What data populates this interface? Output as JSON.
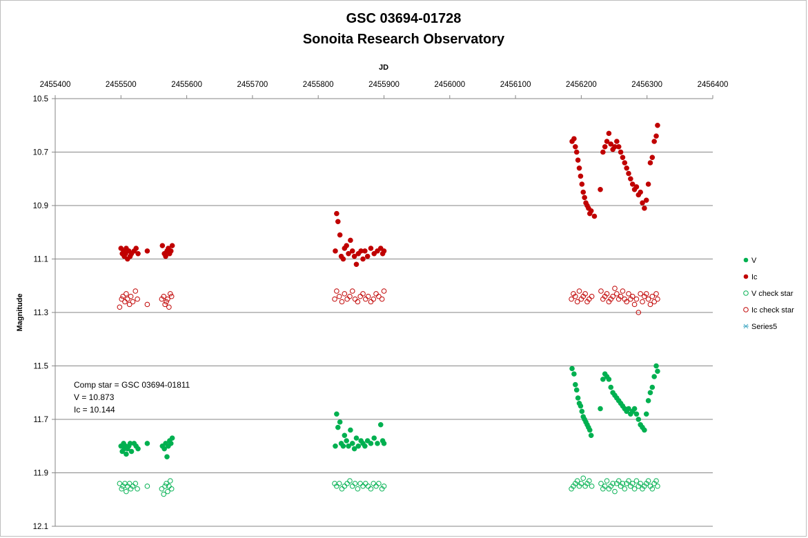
{
  "chart_data": {
    "type": "scatter",
    "title": "GSC 03694-01728",
    "subtitle": "Sonoita Research Observatory",
    "xlabel": "JD",
    "ylabel": "Magnitude",
    "xlim": [
      2455400,
      2456400
    ],
    "ylim": [
      10.5,
      12.1
    ],
    "y_reversed": true,
    "x_axis_position": "top",
    "x_ticks": [
      "2455400",
      "2455500",
      "2455600",
      "2455700",
      "2455800",
      "2455900",
      "2456000",
      "2456100",
      "2456200",
      "2456300",
      "2456400"
    ],
    "y_ticks": [
      "10.5",
      "10.7",
      "10.9",
      "11.1",
      "11.3",
      "11.5",
      "11.7",
      "11.9",
      "12.1"
    ],
    "grid": "horizontal",
    "legend_position": "right",
    "annotation": [
      "Comp star = GSC 03694-01811",
      "V =  10.873",
      "Ic = 10.144"
    ],
    "series": [
      {
        "name": "V",
        "color": "#00b050",
        "marker": "filled-circle",
        "x": [
          2455500,
          2455502,
          2455504,
          2455505,
          2455507,
          2455508,
          2455510,
          2455512,
          2455514,
          2455516,
          2455520,
          2455523,
          2455526,
          2455540,
          2455563,
          2455566,
          2455568,
          2455570,
          2455572,
          2455574,
          2455576,
          2455578,
          2455826,
          2455828,
          2455830,
          2455833,
          2455835,
          2455838,
          2455840,
          2455843,
          2455846,
          2455849,
          2455852,
          2455855,
          2455858,
          2455861,
          2455865,
          2455868,
          2455871,
          2455875,
          2455880,
          2455885,
          2455890,
          2455895,
          2455898,
          2455900,
          2456186,
          2456189,
          2456191,
          2456193,
          2456195,
          2456197,
          2456199,
          2456201,
          2456203,
          2456205,
          2456207,
          2456209,
          2456211,
          2456213,
          2456215,
          2456229,
          2456233,
          2456236,
          2456239,
          2456242,
          2456245,
          2456248,
          2456251,
          2456254,
          2456257,
          2456260,
          2456263,
          2456266,
          2456269,
          2456272,
          2456275,
          2456278,
          2456281,
          2456284,
          2456287,
          2456290,
          2456293,
          2456296,
          2456299,
          2456302,
          2456305,
          2456308,
          2456311,
          2456314,
          2456316
        ],
        "y": [
          11.8,
          11.82,
          11.79,
          11.81,
          11.8,
          11.83,
          11.81,
          11.8,
          11.79,
          11.82,
          11.79,
          11.8,
          11.81,
          11.79,
          11.8,
          11.81,
          11.79,
          11.84,
          11.8,
          11.78,
          11.79,
          11.77,
          11.8,
          11.68,
          11.73,
          11.71,
          11.79,
          11.8,
          11.76,
          11.78,
          11.8,
          11.74,
          11.79,
          11.81,
          11.77,
          11.8,
          11.78,
          11.79,
          11.8,
          11.78,
          11.79,
          11.77,
          11.79,
          11.72,
          11.78,
          11.79,
          11.51,
          11.53,
          11.57,
          11.59,
          11.62,
          11.64,
          11.65,
          11.67,
          11.69,
          11.7,
          11.71,
          11.72,
          11.73,
          11.74,
          11.76,
          11.66,
          11.55,
          11.53,
          11.54,
          11.55,
          11.58,
          11.6,
          11.61,
          11.62,
          11.63,
          11.64,
          11.65,
          11.66,
          11.67,
          11.66,
          11.68,
          11.67,
          11.66,
          11.68,
          11.7,
          11.72,
          11.73,
          11.74,
          11.68,
          11.63,
          11.6,
          11.58,
          11.54,
          11.5,
          11.52
        ]
      },
      {
        "name": "Ic",
        "color": "#c00000",
        "marker": "filled-circle",
        "x": [
          2455500,
          2455502,
          2455504,
          2455505,
          2455507,
          2455508,
          2455510,
          2455512,
          2455514,
          2455516,
          2455520,
          2455523,
          2455526,
          2455540,
          2455563,
          2455566,
          2455568,
          2455570,
          2455572,
          2455574,
          2455576,
          2455578,
          2455826,
          2455828,
          2455830,
          2455833,
          2455835,
          2455838,
          2455840,
          2455843,
          2455846,
          2455849,
          2455852,
          2455855,
          2455858,
          2455861,
          2455865,
          2455868,
          2455871,
          2455875,
          2455880,
          2455885,
          2455890,
          2455895,
          2455898,
          2455900,
          2456186,
          2456189,
          2456191,
          2456193,
          2456195,
          2456197,
          2456199,
          2456201,
          2456203,
          2456205,
          2456207,
          2456209,
          2456211,
          2456213,
          2456215,
          2456220,
          2456229,
          2456233,
          2456236,
          2456239,
          2456242,
          2456245,
          2456248,
          2456251,
          2456254,
          2456257,
          2456260,
          2456263,
          2456266,
          2456269,
          2456272,
          2456275,
          2456278,
          2456281,
          2456284,
          2456287,
          2456290,
          2456293,
          2456296,
          2456299,
          2456302,
          2456305,
          2456308,
          2456311,
          2456314,
          2456316
        ],
        "y": [
          11.06,
          11.08,
          11.07,
          11.09,
          11.08,
          11.06,
          11.1,
          11.07,
          11.09,
          11.08,
          11.07,
          11.06,
          11.08,
          11.07,
          11.05,
          11.08,
          11.09,
          11.07,
          11.06,
          11.08,
          11.07,
          11.05,
          11.07,
          10.93,
          10.96,
          11.01,
          11.09,
          11.1,
          11.06,
          11.05,
          11.08,
          11.03,
          11.07,
          11.09,
          11.12,
          11.08,
          11.07,
          11.1,
          11.07,
          11.09,
          11.06,
          11.08,
          11.07,
          11.06,
          11.08,
          11.07,
          10.66,
          10.65,
          10.68,
          10.7,
          10.73,
          10.76,
          10.79,
          10.82,
          10.85,
          10.87,
          10.89,
          10.9,
          10.91,
          10.93,
          10.92,
          10.94,
          10.84,
          10.7,
          10.68,
          10.66,
          10.63,
          10.67,
          10.69,
          10.68,
          10.66,
          10.68,
          10.7,
          10.72,
          10.74,
          10.76,
          10.78,
          10.8,
          10.82,
          10.84,
          10.83,
          10.86,
          10.85,
          10.89,
          10.91,
          10.88,
          10.82,
          10.74,
          10.72,
          10.66,
          10.64,
          10.6
        ]
      },
      {
        "name": "V check star",
        "color": "#00b050",
        "marker": "open-circle",
        "x": [
          2455498,
          2455501,
          2455503,
          2455506,
          2455508,
          2455510,
          2455513,
          2455515,
          2455518,
          2455522,
          2455525,
          2455540,
          2455562,
          2455565,
          2455567,
          2455569,
          2455571,
          2455573,
          2455575,
          2455577,
          2455825,
          2455828,
          2455832,
          2455836,
          2455840,
          2455844,
          2455848,
          2455852,
          2455856,
          2455860,
          2455864,
          2455868,
          2455872,
          2455876,
          2455880,
          2455884,
          2455888,
          2455892,
          2455897,
          2455900,
          2456185,
          2456188,
          2456191,
          2456194,
          2456197,
          2456200,
          2456203,
          2456206,
          2456209,
          2456212,
          2456216,
          2456230,
          2456233,
          2456236,
          2456239,
          2456242,
          2456245,
          2456248,
          2456251,
          2456254,
          2456257,
          2456260,
          2456263,
          2456266,
          2456269,
          2456272,
          2456275,
          2456278,
          2456281,
          2456284,
          2456287,
          2456290,
          2456293,
          2456296,
          2456299,
          2456302,
          2456305,
          2456308,
          2456311,
          2456314,
          2456316
        ],
        "y": [
          11.94,
          11.96,
          11.95,
          11.94,
          11.97,
          11.95,
          11.94,
          11.96,
          11.95,
          11.94,
          11.96,
          11.95,
          11.96,
          11.98,
          11.95,
          11.94,
          11.97,
          11.95,
          11.93,
          11.96,
          11.94,
          11.95,
          11.94,
          11.96,
          11.95,
          11.94,
          11.93,
          11.95,
          11.94,
          11.96,
          11.94,
          11.95,
          11.94,
          11.95,
          11.96,
          11.94,
          11.95,
          11.94,
          11.96,
          11.95,
          11.96,
          11.95,
          11.94,
          11.93,
          11.95,
          11.94,
          11.92,
          11.95,
          11.94,
          11.93,
          11.95,
          11.94,
          11.96,
          11.95,
          11.93,
          11.96,
          11.95,
          11.94,
          11.97,
          11.94,
          11.93,
          11.95,
          11.94,
          11.96,
          11.94,
          11.93,
          11.95,
          11.94,
          11.96,
          11.93,
          11.95,
          11.94,
          11.96,
          11.95,
          11.94,
          11.93,
          11.95,
          11.96,
          11.94,
          11.93,
          11.95
        ]
      },
      {
        "name": "Ic check star",
        "color": "#c00000",
        "marker": "open-circle",
        "x": [
          2455498,
          2455501,
          2455503,
          2455506,
          2455508,
          2455510,
          2455513,
          2455515,
          2455518,
          2455522,
          2455525,
          2455540,
          2455562,
          2455565,
          2455567,
          2455569,
          2455571,
          2455573,
          2455575,
          2455577,
          2455825,
          2455828,
          2455832,
          2455836,
          2455840,
          2455844,
          2455848,
          2455852,
          2455856,
          2455860,
          2455864,
          2455868,
          2455872,
          2455876,
          2455880,
          2455884,
          2455888,
          2455892,
          2455897,
          2455900,
          2456185,
          2456188,
          2456191,
          2456194,
          2456197,
          2456200,
          2456203,
          2456206,
          2456209,
          2456212,
          2456216,
          2456230,
          2456233,
          2456236,
          2456239,
          2456242,
          2456245,
          2456248,
          2456251,
          2456254,
          2456257,
          2456260,
          2456263,
          2456266,
          2456269,
          2456272,
          2456275,
          2456278,
          2456281,
          2456284,
          2456287,
          2456290,
          2456293,
          2456296,
          2456299,
          2456302,
          2456305,
          2456308,
          2456311,
          2456314,
          2456316
        ],
        "y": [
          11.28,
          11.25,
          11.24,
          11.26,
          11.23,
          11.25,
          11.27,
          11.24,
          11.26,
          11.22,
          11.25,
          11.27,
          11.25,
          11.24,
          11.27,
          11.26,
          11.25,
          11.28,
          11.23,
          11.24,
          11.25,
          11.22,
          11.24,
          11.26,
          11.23,
          11.25,
          11.24,
          11.22,
          11.25,
          11.26,
          11.24,
          11.23,
          11.25,
          11.24,
          11.26,
          11.25,
          11.23,
          11.24,
          11.25,
          11.22,
          11.25,
          11.23,
          11.24,
          11.26,
          11.22,
          11.25,
          11.24,
          11.23,
          11.26,
          11.25,
          11.24,
          11.22,
          11.25,
          11.24,
          11.23,
          11.26,
          11.25,
          11.24,
          11.21,
          11.23,
          11.25,
          11.24,
          11.22,
          11.25,
          11.26,
          11.23,
          11.25,
          11.24,
          11.27,
          11.25,
          11.3,
          11.23,
          11.26,
          11.24,
          11.23,
          11.25,
          11.27,
          11.24,
          11.26,
          11.23,
          11.25
        ]
      },
      {
        "name": "Series5",
        "color": "#4bacc6",
        "marker": "asterisk",
        "x": [],
        "y": []
      }
    ]
  }
}
